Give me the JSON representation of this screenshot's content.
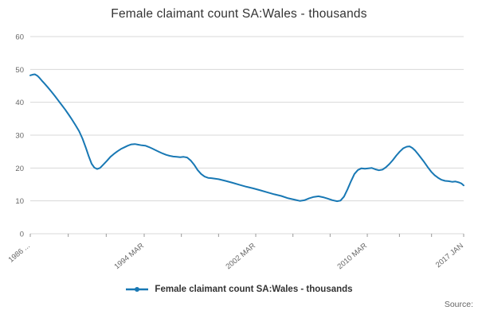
{
  "header": {
    "title": "Female claimant count SA:Wales - thousands"
  },
  "legend": {
    "label": "Female claimant count SA:Wales - thousands"
  },
  "footer": {
    "source_label": "Source:"
  },
  "chart_data": {
    "type": "line",
    "title": "Female claimant count SA:Wales - thousands",
    "series_name": "Female claimant count SA:Wales - thousands",
    "color": "#1878b4",
    "grid_color": "#d8d8d8",
    "axis_text_color": "#666666",
    "tick_color": "#999999",
    "grid": true,
    "legend_position": "bottom",
    "ylim": [
      0,
      60
    ],
    "yticks": [
      0,
      10,
      20,
      30,
      40,
      50,
      60
    ],
    "xlim": [
      1986.0,
      2017.08
    ],
    "xticks": [
      {
        "x": 1986.0,
        "label": "1986 ..."
      },
      {
        "x": 1994.17,
        "label": "1994 MAR"
      },
      {
        "x": 2002.17,
        "label": "2002 MAR"
      },
      {
        "x": 2010.17,
        "label": "2010 MAR"
      },
      {
        "x": 2017.08,
        "label": "2017 JAN"
      }
    ],
    "minor_ticks_per_gap": 2,
    "points": [
      [
        1986.0,
        48.2
      ],
      [
        1986.17,
        48.4
      ],
      [
        1986.33,
        48.5
      ],
      [
        1986.5,
        48.1
      ],
      [
        1986.67,
        47.4
      ],
      [
        1986.83,
        46.6
      ],
      [
        1987.0,
        45.8
      ],
      [
        1987.25,
        44.6
      ],
      [
        1987.5,
        43.3
      ],
      [
        1987.75,
        42.0
      ],
      [
        1988.0,
        40.6
      ],
      [
        1988.25,
        39.2
      ],
      [
        1988.5,
        37.8
      ],
      [
        1988.75,
        36.3
      ],
      [
        1989.0,
        34.7
      ],
      [
        1989.25,
        33.0
      ],
      [
        1989.5,
        31.2
      ],
      [
        1989.75,
        28.9
      ],
      [
        1990.0,
        26.0
      ],
      [
        1990.2,
        23.5
      ],
      [
        1990.4,
        21.3
      ],
      [
        1990.6,
        20.1
      ],
      [
        1990.8,
        19.7
      ],
      [
        1991.0,
        20.0
      ],
      [
        1991.25,
        21.1
      ],
      [
        1991.5,
        22.2
      ],
      [
        1991.75,
        23.4
      ],
      [
        1992.0,
        24.3
      ],
      [
        1992.25,
        25.1
      ],
      [
        1992.5,
        25.8
      ],
      [
        1992.75,
        26.3
      ],
      [
        1993.0,
        26.8
      ],
      [
        1993.25,
        27.2
      ],
      [
        1993.5,
        27.3
      ],
      [
        1993.75,
        27.1
      ],
      [
        1994.0,
        26.9
      ],
      [
        1994.25,
        26.8
      ],
      [
        1994.5,
        26.4
      ],
      [
        1994.75,
        25.9
      ],
      [
        1995.0,
        25.4
      ],
      [
        1995.25,
        24.9
      ],
      [
        1995.5,
        24.4
      ],
      [
        1995.75,
        24.0
      ],
      [
        1996.0,
        23.7
      ],
      [
        1996.25,
        23.5
      ],
      [
        1996.5,
        23.4
      ],
      [
        1996.75,
        23.3
      ],
      [
        1997.0,
        23.4
      ],
      [
        1997.25,
        23.2
      ],
      [
        1997.5,
        22.3
      ],
      [
        1997.75,
        21.0
      ],
      [
        1998.0,
        19.4
      ],
      [
        1998.25,
        18.2
      ],
      [
        1998.5,
        17.4
      ],
      [
        1998.75,
        17.0
      ],
      [
        1999.0,
        16.9
      ],
      [
        1999.5,
        16.6
      ],
      [
        2000.0,
        16.1
      ],
      [
        2000.5,
        15.5
      ],
      [
        2001.0,
        14.9
      ],
      [
        2001.5,
        14.3
      ],
      [
        2002.0,
        13.8
      ],
      [
        2002.5,
        13.2
      ],
      [
        2003.0,
        12.6
      ],
      [
        2003.5,
        12.0
      ],
      [
        2004.0,
        11.5
      ],
      [
        2004.5,
        10.8
      ],
      [
        2005.0,
        10.3
      ],
      [
        2005.33,
        10.0
      ],
      [
        2005.67,
        10.2
      ],
      [
        2006.0,
        10.8
      ],
      [
        2006.33,
        11.2
      ],
      [
        2006.67,
        11.4
      ],
      [
        2007.0,
        11.1
      ],
      [
        2007.33,
        10.7
      ],
      [
        2007.67,
        10.2
      ],
      [
        2008.0,
        9.9
      ],
      [
        2008.25,
        10.1
      ],
      [
        2008.5,
        11.3
      ],
      [
        2008.75,
        13.5
      ],
      [
        2009.0,
        16.0
      ],
      [
        2009.25,
        18.2
      ],
      [
        2009.5,
        19.4
      ],
      [
        2009.75,
        19.9
      ],
      [
        2010.0,
        19.8
      ],
      [
        2010.25,
        19.9
      ],
      [
        2010.5,
        20.0
      ],
      [
        2010.75,
        19.6
      ],
      [
        2011.0,
        19.3
      ],
      [
        2011.25,
        19.5
      ],
      [
        2011.5,
        20.2
      ],
      [
        2011.75,
        21.2
      ],
      [
        2012.0,
        22.4
      ],
      [
        2012.25,
        23.8
      ],
      [
        2012.5,
        25.0
      ],
      [
        2012.75,
        26.0
      ],
      [
        2013.0,
        26.5
      ],
      [
        2013.2,
        26.6
      ],
      [
        2013.4,
        26.1
      ],
      [
        2013.6,
        25.3
      ],
      [
        2013.8,
        24.3
      ],
      [
        2014.0,
        23.2
      ],
      [
        2014.25,
        21.8
      ],
      [
        2014.5,
        20.3
      ],
      [
        2014.75,
        18.9
      ],
      [
        2015.0,
        17.8
      ],
      [
        2015.25,
        17.0
      ],
      [
        2015.5,
        16.4
      ],
      [
        2015.75,
        16.1
      ],
      [
        2016.0,
        16.0
      ],
      [
        2016.25,
        15.8
      ],
      [
        2016.5,
        15.9
      ],
      [
        2016.75,
        15.6
      ],
      [
        2016.92,
        15.3
      ],
      [
        2017.08,
        14.7
      ]
    ]
  }
}
